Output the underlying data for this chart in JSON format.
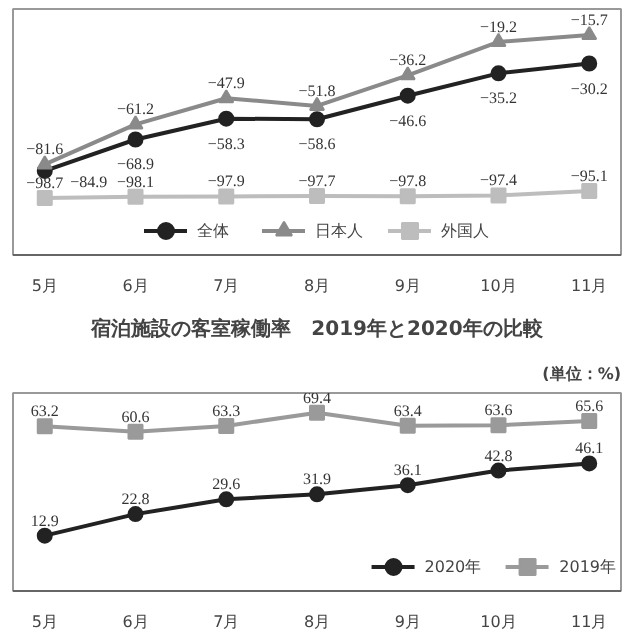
{
  "chart_data": [
    {
      "type": "line",
      "categories": [
        "5月",
        "6月",
        "7月",
        "8月",
        "9月",
        "10月",
        "11月"
      ],
      "legend": "bottom",
      "grid": false,
      "series": [
        {
          "name": "全体",
          "color": "#222222",
          "marker": "circle",
          "values": [
            -84.9,
            -68.9,
            -58.3,
            -58.6,
            -46.6,
            -35.2,
            -30.2
          ],
          "value_labels": [
            "−84.9",
            "−68.9",
            "−58.3",
            "−58.6",
            "−46.6",
            "−35.2",
            "−30.2"
          ]
        },
        {
          "name": "日本人",
          "color": "#8a8a8a",
          "marker": "triangle",
          "values": [
            -81.6,
            -61.2,
            -47.9,
            -51.8,
            -36.2,
            -19.2,
            -15.7
          ],
          "value_labels": [
            "−81.6",
            "−61.2",
            "−47.9",
            "−51.8",
            "−36.2",
            "−19.2",
            "−15.7"
          ]
        },
        {
          "name": "外国人",
          "color": "#bdbdbd",
          "marker": "square",
          "values": [
            -98.7,
            -98.1,
            -97.9,
            -97.7,
            -97.8,
            -97.4,
            -95.1
          ],
          "value_labels": [
            "−98.7",
            "−98.1",
            "−97.9",
            "−97.7",
            "−97.8",
            "−97.4",
            "−95.1"
          ]
        }
      ]
    },
    {
      "type": "line",
      "title": "宿泊施設の客室稼働率　2019年と2020年の比較",
      "subtitle": "(単位：%)",
      "categories": [
        "5月",
        "6月",
        "7月",
        "8月",
        "9月",
        "10月",
        "11月"
      ],
      "legend": "bottom right",
      "grid": false,
      "data_labels": true,
      "series": [
        {
          "name": "2020年",
          "color": "#222222",
          "marker": "circle",
          "values": [
            12.9,
            22.8,
            29.6,
            31.9,
            36.1,
            42.8,
            46.1
          ]
        },
        {
          "name": "2019年",
          "color": "#9a9a9a",
          "marker": "square",
          "values": [
            63.2,
            60.6,
            63.3,
            69.4,
            63.4,
            63.6,
            65.6
          ]
        }
      ]
    }
  ]
}
